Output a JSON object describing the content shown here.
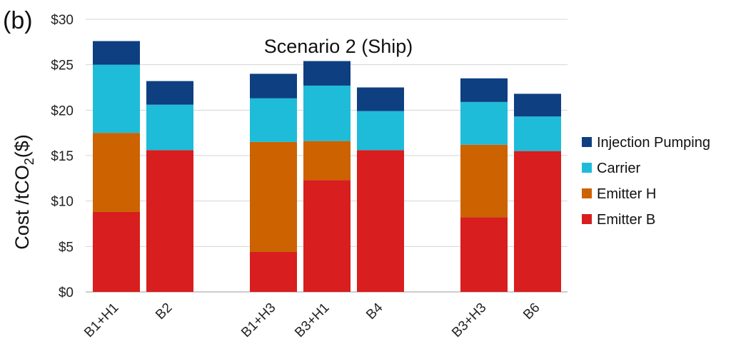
{
  "panel_label": "(b)",
  "chart_data": {
    "type": "bar",
    "stacked": true,
    "title": "Scenario 2 (Ship)",
    "ylabel": "Cost /tCO2($)",
    "ylabel_parts": {
      "main": "Cost /tCO",
      "sub": "2",
      "tail": "($)"
    },
    "xlabel": "",
    "ylim": [
      0,
      30
    ],
    "yticks": [
      0,
      5,
      10,
      15,
      20,
      25,
      30
    ],
    "ytick_labels": [
      "$0",
      "$5",
      "$10",
      "$15",
      "$20",
      "$25",
      "$30"
    ],
    "grid": true,
    "legend_position": "right",
    "groups": [
      {
        "categories": [
          "B1+H1",
          "B2"
        ]
      },
      {
        "categories": [
          "B1+H3",
          "B3+H1",
          "B4"
        ]
      },
      {
        "categories": [
          "B3+H3",
          "B6"
        ]
      }
    ],
    "categories": [
      "B1+H1",
      "B2",
      "B1+H3",
      "B3+H1",
      "B4",
      "B3+H3",
      "B6"
    ],
    "series": [
      {
        "name": "Emitter B",
        "color": "#d81e1e",
        "values": [
          8.8,
          15.6,
          4.4,
          12.3,
          15.6,
          8.2,
          15.5
        ]
      },
      {
        "name": "Emitter H",
        "color": "#cc6200",
        "values": [
          8.7,
          0,
          12.1,
          4.3,
          0,
          8.0,
          0
        ]
      },
      {
        "name": "Carrier",
        "color": "#1ebcd8",
        "values": [
          7.5,
          5.0,
          4.8,
          6.1,
          4.3,
          4.7,
          3.8
        ]
      },
      {
        "name": "Injection Pumping",
        "color": "#0e3f80",
        "values": [
          2.6,
          2.6,
          2.7,
          2.7,
          2.6,
          2.6,
          2.5
        ]
      }
    ],
    "legend_order": [
      "Injection Pumping",
      "Carrier",
      "Emitter H",
      "Emitter B"
    ]
  }
}
